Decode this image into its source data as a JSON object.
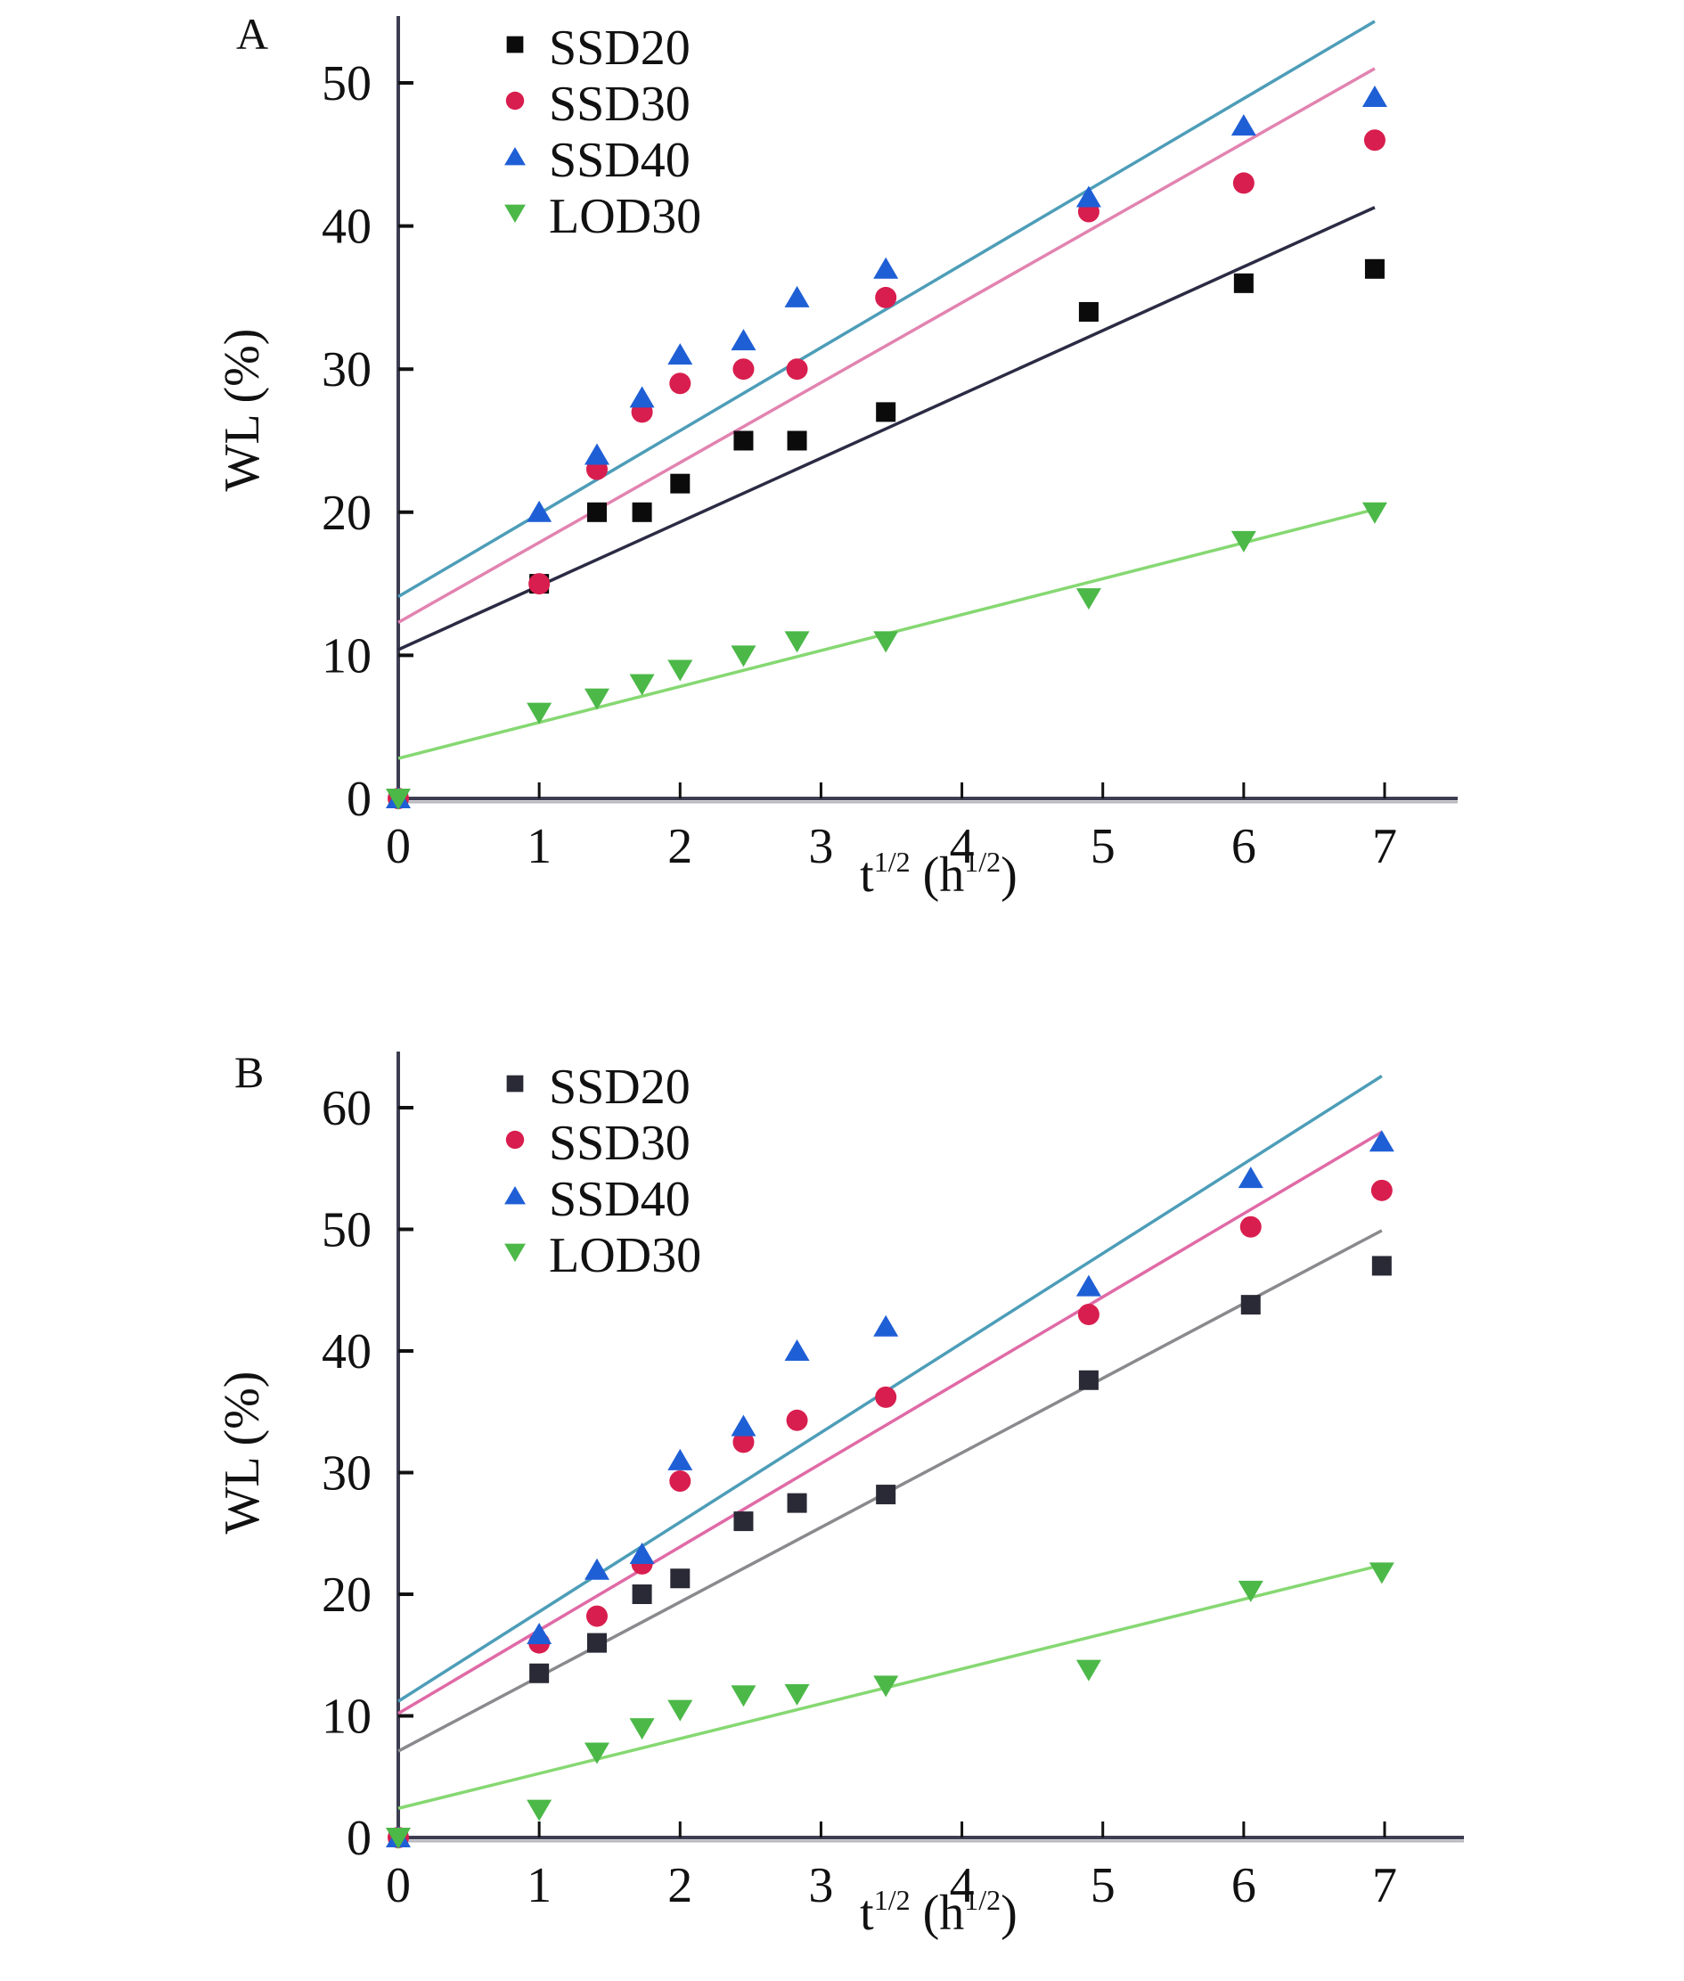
{
  "chart_data": [
    {
      "type": "scatter",
      "panel_label": "A",
      "title": "",
      "xlabel": "t",
      "xlabel_sup": "1/2",
      "xlabel_unit": "h",
      "xlabel_unit_sup": "1/2",
      "ylabel": "WL (%)",
      "xlim": [
        0,
        7.5
      ],
      "ylim": [
        0,
        54
      ],
      "xticks": [
        0,
        1,
        2,
        3,
        4,
        5,
        6,
        7
      ],
      "yticks": [
        0,
        10,
        20,
        30,
        40,
        50
      ],
      "grid": false,
      "legend": "top-left",
      "x": [
        0,
        1,
        1.41,
        1.73,
        2,
        2.45,
        2.83,
        3.46,
        4.9,
        6,
        6.93
      ],
      "series": [
        {
          "name": "SSD20",
          "marker": "square",
          "color": "#0b0b0b",
          "line_color": "#2b2b44",
          "values": [
            0,
            15,
            20,
            20,
            22,
            25,
            25,
            27,
            34,
            36,
            37
          ],
          "fit": {
            "intercept": 10.4,
            "end_x": 6.93,
            "end_y": 41.3
          }
        },
        {
          "name": "SSD30",
          "marker": "circle",
          "color": "#d81e4e",
          "line_color": "#e283b0",
          "values": [
            0,
            15,
            23,
            27,
            29,
            30,
            30,
            35,
            41,
            43,
            46
          ],
          "fit": {
            "intercept": 12.3,
            "end_x": 6.93,
            "end_y": 51.0
          }
        },
        {
          "name": "SSD40",
          "marker": "triangle-up",
          "color": "#1f5fd6",
          "line_color": "#4d9db8",
          "values": [
            0,
            20,
            24,
            28,
            31,
            32,
            35,
            37,
            42,
            47,
            49
          ],
          "fit": {
            "intercept": 14.1,
            "end_x": 6.93,
            "end_y": 54.3
          }
        },
        {
          "name": "LOD30",
          "marker": "triangle-down",
          "color": "#4cb848",
          "line_color": "#86d872",
          "values": [
            0,
            6,
            7,
            8,
            9,
            10,
            11,
            11,
            14,
            18,
            20
          ],
          "fit": {
            "intercept": 2.8,
            "end_x": 6.93,
            "end_y": 20.2
          }
        }
      ]
    },
    {
      "type": "scatter",
      "panel_label": "B",
      "title": "",
      "xlabel": "t",
      "xlabel_sup": "1/2",
      "xlabel_unit": "h",
      "xlabel_unit_sup": "1/2",
      "ylabel": "WL (%)",
      "xlim": [
        0,
        7.5
      ],
      "ylim": [
        0,
        65
      ],
      "xticks": [
        0,
        1,
        2,
        3,
        4,
        5,
        6,
        7
      ],
      "yticks": [
        0,
        10,
        20,
        30,
        40,
        50,
        60
      ],
      "grid": false,
      "legend": "top-left",
      "x": [
        0,
        1,
        1.41,
        1.73,
        2,
        2.45,
        2.83,
        3.46,
        4.9,
        6.05,
        6.98
      ],
      "series": [
        {
          "name": "SSD20",
          "marker": "square",
          "color": "#2a2a36",
          "line_color": "#8a8a8e",
          "values": [
            0,
            13.5,
            16,
            20,
            21.3,
            26,
            27.5,
            28.2,
            37.6,
            43.8,
            47
          ],
          "fit": {
            "intercept": 7.1,
            "end_x": 6.98,
            "end_y": 49.9
          }
        },
        {
          "name": "SSD30",
          "marker": "circle",
          "color": "#d81e4e",
          "line_color": "#e06aa6",
          "values": [
            0,
            16,
            18.2,
            22.5,
            29.3,
            32.5,
            34.3,
            36.2,
            43,
            50.2,
            53.2
          ],
          "fit": {
            "intercept": 10.2,
            "end_x": 6.98,
            "end_y": 58.0
          }
        },
        {
          "name": "SSD40",
          "marker": "triangle-up",
          "color": "#1f5fd6",
          "line_color": "#4d9db8",
          "values": [
            0,
            16.7,
            22,
            23.3,
            31,
            33.8,
            40,
            42,
            45.3,
            54.2,
            57.2
          ],
          "fit": {
            "intercept": 11.2,
            "end_x": 6.98,
            "end_y": 62.6
          }
        },
        {
          "name": "LOD30",
          "marker": "triangle-down",
          "color": "#4cb848",
          "line_color": "#86d872",
          "values": [
            0,
            2.3,
            7,
            9,
            10.5,
            11.7,
            11.8,
            12.5,
            13.8,
            20.3,
            21.8
          ],
          "fit": {
            "intercept": 2.4,
            "end_x": 6.98,
            "end_y": 22.4
          }
        }
      ]
    }
  ]
}
